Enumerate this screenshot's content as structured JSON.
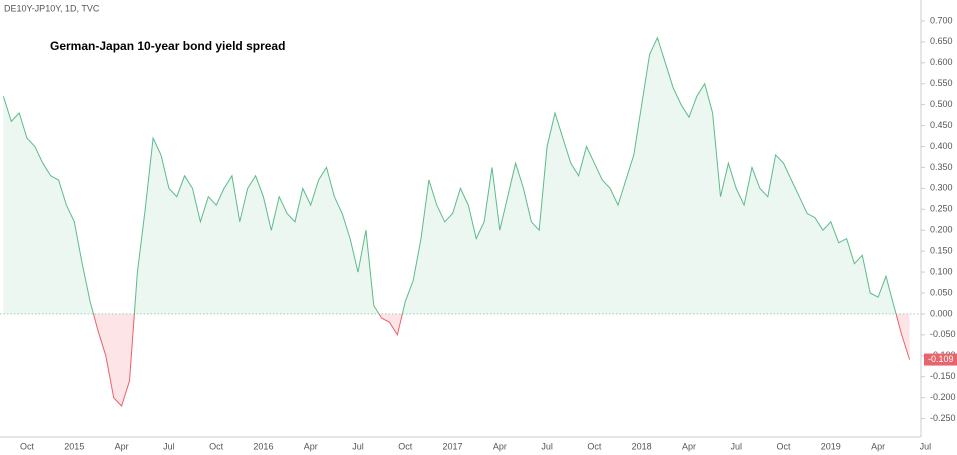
{
  "chart_data": {
    "type": "baseline-line",
    "header": "DE10Y-JP10Y, 1D, TVC",
    "title": "German-Japan 10-year bond yield spread",
    "categories": [
      null,
      null,
      null,
      "Oct",
      null,
      null,
      null,
      null,
      null,
      "2015",
      null,
      null,
      null,
      null,
      null,
      "Apr",
      null,
      null,
      null,
      null,
      null,
      "Jul",
      null,
      null,
      null,
      null,
      null,
      "Oct",
      null,
      null,
      null,
      null,
      null,
      "2016",
      null,
      null,
      null,
      null,
      null,
      "Apr",
      null,
      null,
      null,
      null,
      null,
      "Jul",
      null,
      null,
      null,
      null,
      null,
      "Oct",
      null,
      null,
      null,
      null,
      null,
      "2017",
      null,
      null,
      null,
      null,
      null,
      "Apr",
      null,
      null,
      null,
      null,
      null,
      "Jul",
      null,
      null,
      null,
      null,
      null,
      "Oct",
      null,
      null,
      null,
      null,
      null,
      "2018",
      null,
      null,
      null,
      null,
      null,
      "Apr",
      null,
      null,
      null,
      null,
      null,
      "Jul",
      null,
      null,
      null,
      null,
      null,
      "Oct",
      null,
      null,
      null,
      null,
      null,
      "2019",
      null,
      null,
      null,
      null,
      null,
      "Apr",
      null,
      null,
      null,
      null,
      null,
      "Jul"
    ],
    "values": [
      0.52,
      0.46,
      0.48,
      0.42,
      0.4,
      0.36,
      0.33,
      0.32,
      0.26,
      0.22,
      0.12,
      0.03,
      -0.04,
      -0.1,
      -0.2,
      -0.22,
      -0.16,
      0.1,
      0.25,
      0.42,
      0.38,
      0.3,
      0.28,
      0.33,
      0.3,
      0.22,
      0.28,
      0.26,
      0.3,
      0.33,
      0.22,
      0.3,
      0.33,
      0.28,
      0.2,
      0.28,
      0.24,
      0.22,
      0.3,
      0.26,
      0.32,
      0.35,
      0.28,
      0.24,
      0.18,
      0.1,
      0.2,
      0.02,
      -0.01,
      -0.02,
      -0.05,
      0.03,
      0.08,
      0.18,
      0.32,
      0.26,
      0.22,
      0.24,
      0.3,
      0.26,
      0.18,
      0.22,
      0.35,
      0.2,
      0.28,
      0.36,
      0.3,
      0.22,
      0.2,
      0.4,
      0.48,
      0.42,
      0.36,
      0.33,
      0.4,
      0.36,
      0.32,
      0.3,
      0.26,
      0.32,
      0.38,
      0.5,
      0.62,
      0.66,
      0.6,
      0.54,
      0.5,
      0.47,
      0.52,
      0.55,
      0.48,
      0.28,
      0.36,
      0.3,
      0.26,
      0.35,
      0.3,
      0.28,
      0.38,
      0.36,
      0.32,
      0.28,
      0.24,
      0.23,
      0.2,
      0.22,
      0.17,
      0.18,
      0.12,
      0.14,
      0.05,
      0.04,
      0.09,
      0.02,
      -0.05,
      -0.109,
      null,
      null
    ],
    "current_value": {
      "value": -0.109,
      "label": "-0.109"
    },
    "color_above": "#5dbb8a",
    "color_below": "#e8636b",
    "fill_above": "#ebf7f0",
    "fill_below": "#fde4e6",
    "ylim": [
      -0.294,
      0.75
    ],
    "yticks": [
      {
        "value": -0.25,
        "label": "-0.250"
      },
      {
        "value": -0.2,
        "label": "-0.200"
      },
      {
        "value": -0.15,
        "label": "-0.150"
      },
      {
        "value": -0.1,
        "label": "-0.100"
      },
      {
        "value": -0.05,
        "label": "-0.050"
      },
      {
        "value": 0,
        "label": "0.000"
      },
      {
        "value": 0.05,
        "label": "0.050"
      },
      {
        "value": 0.1,
        "label": "0.100"
      },
      {
        "value": 0.15,
        "label": "0.150"
      },
      {
        "value": 0.2,
        "label": "0.200"
      },
      {
        "value": 0.25,
        "label": "0.250"
      },
      {
        "value": 0.3,
        "label": "0.300"
      },
      {
        "value": 0.35,
        "label": "0.350"
      },
      {
        "value": 0.4,
        "label": "0.400"
      },
      {
        "value": 0.45,
        "label": "0.450"
      },
      {
        "value": 0.5,
        "label": "0.500"
      },
      {
        "value": 0.55,
        "label": "0.550"
      },
      {
        "value": 0.6,
        "label": "0.600"
      },
      {
        "value": 0.65,
        "label": "0.650"
      },
      {
        "value": 0.7,
        "label": "0.700"
      }
    ],
    "grid": false
  }
}
